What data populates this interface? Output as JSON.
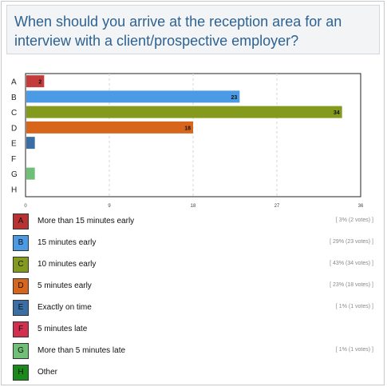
{
  "question": "When should you arrive at the reception area for an interview with a client/prospective employer?",
  "chart_data": {
    "type": "bar",
    "orientation": "horizontal",
    "categories": [
      "A",
      "B",
      "C",
      "D",
      "E",
      "F",
      "G",
      "H"
    ],
    "values": [
      2,
      23,
      34,
      18,
      1,
      0,
      1,
      0
    ],
    "data_labels": [
      "2",
      "23",
      "34",
      "18",
      "",
      "",
      "",
      ""
    ],
    "colors": [
      "#c33b3b",
      "#4b9ae6",
      "#849a1d",
      "#d8651c",
      "#3a6ea5",
      "#d3304f",
      "#6fbf76",
      "#1a8a1a"
    ],
    "xlim": [
      0,
      36
    ],
    "xticks": [
      0,
      9,
      18,
      27,
      36
    ],
    "grid": true
  },
  "legend": [
    {
      "letter": "A",
      "label": "More than 15 minutes early",
      "stat": "[ 3% (2 votes) ]",
      "color": "#b83232"
    },
    {
      "letter": "B",
      "label": "15 minutes early",
      "stat": "[ 29% (23 votes) ]",
      "color": "#4b9ae6"
    },
    {
      "letter": "C",
      "label": "10 minutes early",
      "stat": "[ 43% (34 votes) ]",
      "color": "#849a1d"
    },
    {
      "letter": "D",
      "label": "5 minutes early",
      "stat": "[ 23% (18 votes) ]",
      "color": "#d8651c"
    },
    {
      "letter": "E",
      "label": "Exactly on time",
      "stat": "[ 1% (1 votes) ]",
      "color": "#3a6ea5"
    },
    {
      "letter": "F",
      "label": "5 minutes late",
      "stat": "",
      "color": "#d3304f"
    },
    {
      "letter": "G",
      "label": "More than 5 minutes late",
      "stat": "[ 1% (1 votes) ]",
      "color": "#6fbf76"
    },
    {
      "letter": "H",
      "label": "Other",
      "stat": "",
      "color": "#1a8a1a"
    }
  ]
}
